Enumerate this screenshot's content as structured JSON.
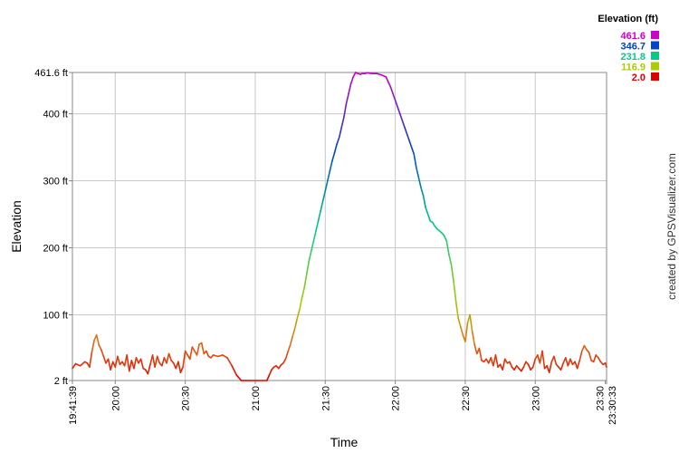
{
  "chart_data": {
    "type": "line",
    "title": "",
    "xlabel": "Time",
    "ylabel": "Elevation",
    "ylim": [
      2.0,
      461.6
    ],
    "xlim": [
      "19:41:39",
      "23:30:33"
    ],
    "grid": true,
    "y_ticks": [
      "2 ft",
      "100 ft",
      "200 ft",
      "300 ft",
      "400 ft",
      "461.6 ft"
    ],
    "y_tick_values": [
      2,
      100,
      200,
      300,
      400,
      461.6
    ],
    "x_ticks": [
      "19:41:39",
      "20:00",
      "20:30",
      "21:00",
      "21:30",
      "22:00",
      "22:30",
      "23:00",
      "23:30",
      "23:30:33"
    ],
    "x_tick_minutes": [
      1181.65,
      1200,
      1230,
      1260,
      1290,
      1320,
      1350,
      1380,
      1410,
      1410.55
    ],
    "legend": {
      "title": "Elevation (ft)",
      "placement": "top-right",
      "entries": [
        {
          "label": "461.6",
          "color": "#cc00cc"
        },
        {
          "label": "346.7",
          "color": "#0044cc"
        },
        {
          "label": "231.8",
          "color": "#00cc88"
        },
        {
          "label": "116.9",
          "color": "#aacc00"
        },
        {
          "label": "2.0",
          "color": "#dd0000"
        }
      ]
    },
    "series": [
      {
        "time": [
          "19:41:39",
          "19:43",
          "19:45",
          "19:47",
          "19:48",
          "19:49",
          "19:50",
          "19:51",
          "19:52",
          "19:53",
          "19:54",
          "19:55",
          "19:56",
          "19:57",
          "19:58",
          "19:59",
          "20:00",
          "20:01",
          "20:02",
          "20:03",
          "20:04",
          "20:05",
          "20:06",
          "20:07",
          "20:08",
          "20:09",
          "20:10",
          "20:11",
          "20:12",
          "20:13",
          "20:14",
          "20:15",
          "20:16",
          "20:17",
          "20:18",
          "20:19",
          "20:20",
          "20:21",
          "20:22",
          "20:23",
          "20:24",
          "20:25",
          "20:26",
          "20:27",
          "20:28",
          "20:29",
          "20:30",
          "20:31",
          "20:32",
          "20:33",
          "20:35",
          "20:36",
          "20:37",
          "20:38",
          "20:39",
          "20:40",
          "20:41",
          "20:42",
          "20:44",
          "20:46",
          "20:48",
          "20:50",
          "20:52",
          "20:54",
          "20:55",
          "20:56",
          "20:57",
          "20:58",
          "21:05",
          "21:06",
          "21:07",
          "21:08",
          "21:09",
          "21:10",
          "21:11",
          "21:12",
          "21:13",
          "21:14",
          "21:15",
          "21:16",
          "21:17",
          "21:18",
          "21:19",
          "21:20",
          "21:21",
          "21:22",
          "21:23",
          "21:24",
          "21:25",
          "21:26",
          "21:27",
          "21:28",
          "21:29",
          "21:30",
          "21:31",
          "21:32",
          "21:33",
          "21:34",
          "21:35",
          "21:36",
          "21:37",
          "21:38",
          "21:39",
          "21:40",
          "21:41",
          "21:42",
          "21:43",
          "21:44",
          "21:45",
          "21:46",
          "21:47",
          "21:48",
          "21:50",
          "21:52",
          "21:54",
          "21:56",
          "21:58",
          "22:00",
          "22:02",
          "22:04",
          "22:06",
          "22:08",
          "22:09",
          "22:10",
          "22:11",
          "22:12",
          "22:13",
          "22:14",
          "22:15",
          "22:16",
          "22:17",
          "22:18",
          "22:19",
          "22:20",
          "22:21",
          "22:22",
          "22:23",
          "22:24",
          "22:25",
          "22:26",
          "22:27",
          "22:28",
          "22:29",
          "22:30",
          "22:31",
          "22:32",
          "22:33",
          "22:34",
          "22:35",
          "22:36",
          "22:37",
          "22:38",
          "22:39",
          "22:40",
          "22:41",
          "22:42",
          "22:43",
          "22:44",
          "22:45",
          "22:46",
          "22:47",
          "22:48",
          "22:49",
          "22:50",
          "22:51",
          "22:52",
          "22:53",
          "22:54",
          "22:55",
          "22:56",
          "22:57",
          "22:58",
          "22:59",
          "23:00",
          "23:01",
          "23:02",
          "23:03",
          "23:04",
          "23:05",
          "23:06",
          "23:07",
          "23:08",
          "23:09",
          "23:10",
          "23:11",
          "23:12",
          "23:13",
          "23:14",
          "23:15",
          "23:16",
          "23:17",
          "23:18",
          "23:19",
          "23:20",
          "23:21",
          "23:22",
          "23:23",
          "23:24",
          "23:25",
          "23:26",
          "23:27",
          "23:28",
          "23:29",
          "23:30",
          "23:30:33"
        ],
        "elevation": [
          20,
          27,
          24,
          30,
          28,
          22,
          45,
          62,
          70,
          55,
          48,
          38,
          28,
          34,
          18,
          30,
          22,
          38,
          26,
          30,
          24,
          40,
          16,
          32,
          20,
          36,
          28,
          34,
          20,
          18,
          12,
          26,
          40,
          22,
          38,
          28,
          24,
          36,
          28,
          42,
          32,
          28,
          20,
          30,
          14,
          22,
          46,
          40,
          34,
          52,
          40,
          56,
          58,
          42,
          46,
          38,
          36,
          40,
          38,
          40,
          36,
          24,
          10,
          2,
          2,
          2,
          2,
          2,
          2,
          10,
          18,
          22,
          24,
          20,
          25,
          28,
          34,
          45,
          55,
          68,
          80,
          95,
          108,
          125,
          140,
          160,
          180,
          195,
          210,
          225,
          240,
          255,
          270,
          285,
          300,
          315,
          330,
          342,
          355,
          365,
          380,
          395,
          415,
          430,
          445,
          455,
          461.6,
          460,
          459,
          460,
          460,
          461,
          460,
          460,
          458,
          455,
          440,
          420,
          400,
          380,
          360,
          340,
          320,
          305,
          290,
          278,
          260,
          250,
          240,
          238,
          232,
          228,
          225,
          222,
          218,
          210,
          190,
          175,
          150,
          120,
          95,
          82,
          70,
          60,
          88,
          100,
          75,
          55,
          42,
          50,
          32,
          30,
          34,
          28,
          36,
          24,
          40,
          22,
          26,
          18,
          34,
          28,
          30,
          22,
          18,
          24,
          20,
          16,
          22,
          30,
          26,
          18,
          22,
          34,
          40,
          28,
          46,
          20,
          24,
          14,
          30,
          38,
          26,
          22,
          18,
          28,
          36,
          24,
          34,
          26,
          30,
          20,
          32,
          46,
          54,
          48,
          44,
          32,
          30,
          40,
          36,
          30,
          26,
          28,
          22,
          26,
          24,
          28,
          20
        ]
      }
    ]
  },
  "credit": "created by GPSVisualizer.com"
}
